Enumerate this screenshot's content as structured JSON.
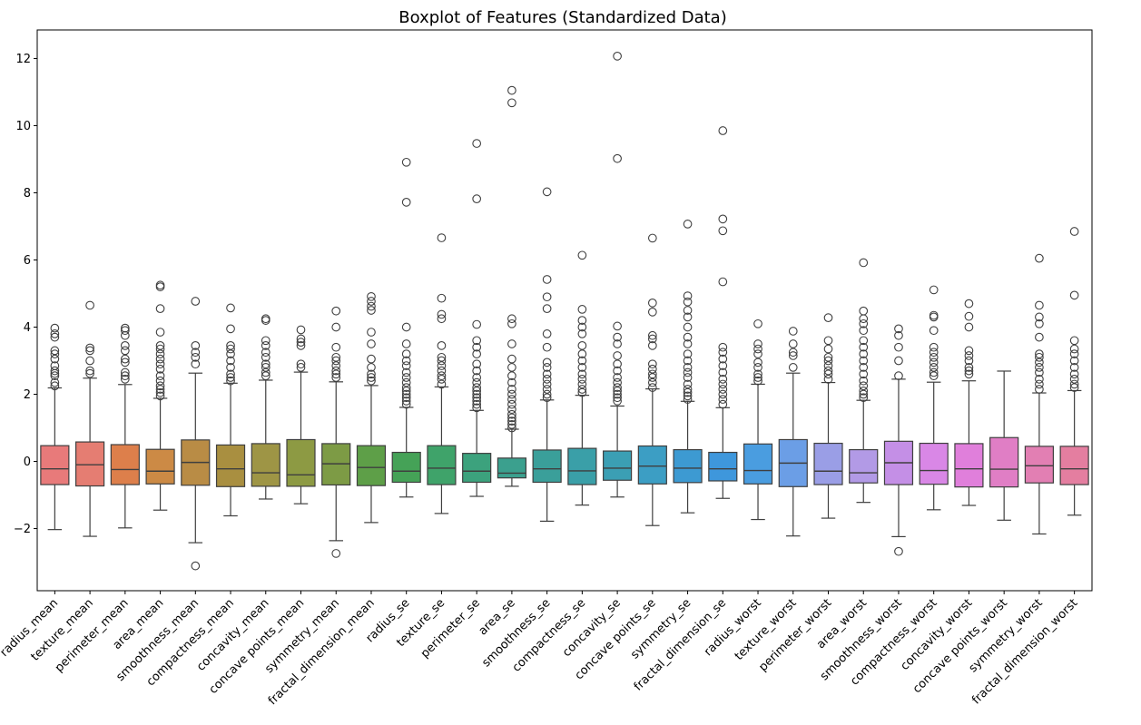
{
  "chart_data": {
    "type": "boxplot",
    "title": "Boxplot of Features (Standardized Data)",
    "xlabel": "",
    "ylabel": "",
    "ylim": [
      -3.85,
      12.85
    ],
    "yticks": [
      -2,
      0,
      2,
      4,
      6,
      8,
      10,
      12
    ],
    "grid": false,
    "legend": "none",
    "categories": [
      "radius_mean",
      "texture_mean",
      "perimeter_mean",
      "area_mean",
      "smoothness_mean",
      "compactness_mean",
      "concavity_mean",
      "concave points_mean",
      "symmetry_mean",
      "fractal_dimension_mean",
      "radius_se",
      "texture_se",
      "perimeter_se",
      "area_se",
      "smoothness_se",
      "compactness_se",
      "concavity_se",
      "concave points_se",
      "symmetry_se",
      "fractal_dimension_se",
      "radius_worst",
      "texture_worst",
      "perimeter_worst",
      "area_worst",
      "smoothness_worst",
      "compactness_worst",
      "concavity_worst",
      "concave points_worst",
      "symmetry_worst",
      "fractal_dimension_worst"
    ],
    "boxes": [
      {
        "q1": -0.69,
        "median": -0.22,
        "q3": 0.47,
        "whisker_low": -2.03,
        "whisker_high": 2.19,
        "color": "#e87a7a",
        "outliers": [
          2.25,
          2.35,
          2.55,
          2.62,
          2.7,
          2.85,
          3.05,
          3.2,
          3.3,
          3.7,
          3.8,
          3.97
        ]
      },
      {
        "q1": -0.73,
        "median": -0.1,
        "q3": 0.58,
        "whisker_low": -2.23,
        "whisker_high": 2.48,
        "color": "#e57d72",
        "outliers": [
          2.62,
          2.7,
          3.0,
          3.3,
          3.38,
          4.65
        ]
      },
      {
        "q1": -0.69,
        "median": -0.24,
        "q3": 0.5,
        "whisker_low": -1.98,
        "whisker_high": 2.29,
        "color": "#dd7f4b",
        "outliers": [
          2.45,
          2.55,
          2.65,
          2.95,
          3.05,
          3.3,
          3.45,
          3.75,
          3.9,
          3.97
        ]
      },
      {
        "q1": -0.67,
        "median": -0.29,
        "q3": 0.36,
        "whisker_low": -1.45,
        "whisker_high": 1.88,
        "color": "#cc8a45",
        "outliers": [
          1.95,
          2.05,
          2.15,
          2.25,
          2.4,
          2.55,
          2.75,
          2.9,
          3.05,
          3.2,
          3.35,
          3.45,
          3.85,
          4.55,
          5.2,
          5.25
        ]
      },
      {
        "q1": -0.71,
        "median": -0.03,
        "q3": 0.64,
        "whisker_low": -2.42,
        "whisker_high": 2.63,
        "color": "#b98c45",
        "outliers": [
          -3.11,
          2.9,
          3.1,
          3.25,
          3.45,
          4.77
        ]
      },
      {
        "q1": -0.75,
        "median": -0.22,
        "q3": 0.49,
        "whisker_low": -1.62,
        "whisker_high": 2.33,
        "color": "#a98f40",
        "outliers": [
          2.4,
          2.5,
          2.6,
          2.8,
          3.0,
          3.2,
          3.35,
          3.45,
          3.95,
          4.57
        ]
      },
      {
        "q1": -0.74,
        "median": -0.34,
        "q3": 0.53,
        "whisker_low": -1.12,
        "whisker_high": 2.42,
        "color": "#9e9545",
        "outliers": [
          2.55,
          2.65,
          2.8,
          2.9,
          3.1,
          3.25,
          3.45,
          3.6,
          4.2,
          4.25
        ]
      },
      {
        "q1": -0.74,
        "median": -0.4,
        "q3": 0.65,
        "whisker_low": -1.26,
        "whisker_high": 2.66,
        "color": "#8d9a43",
        "outliers": [
          2.8,
          2.9,
          3.45,
          3.55,
          3.65,
          3.92
        ]
      },
      {
        "q1": -0.7,
        "median": -0.07,
        "q3": 0.53,
        "whisker_low": -2.36,
        "whisker_high": 2.37,
        "color": "#7d9b45",
        "outliers": [
          -2.74,
          2.5,
          2.6,
          2.7,
          2.85,
          3.0,
          3.1,
          3.4,
          4.0,
          4.48
        ]
      },
      {
        "q1": -0.72,
        "median": -0.18,
        "q3": 0.47,
        "whisker_low": -1.82,
        "whisker_high": 2.26,
        "color": "#5e9f48",
        "outliers": [
          2.4,
          2.5,
          2.6,
          2.8,
          3.05,
          3.5,
          3.85,
          4.5,
          4.62,
          4.77,
          4.91
        ]
      },
      {
        "q1": -0.62,
        "median": -0.29,
        "q3": 0.27,
        "whisker_low": -1.06,
        "whisker_high": 1.61,
        "color": "#45a257",
        "outliers": [
          1.7,
          1.8,
          1.9,
          2.0,
          2.1,
          2.2,
          2.35,
          2.5,
          2.65,
          2.85,
          3.0,
          3.2,
          3.5,
          4.0,
          7.72,
          8.91
        ]
      },
      {
        "q1": -0.69,
        "median": -0.2,
        "q3": 0.47,
        "whisker_low": -1.55,
        "whisker_high": 2.22,
        "color": "#3fa36a",
        "outliers": [
          2.3,
          2.45,
          2.55,
          2.7,
          2.85,
          3.0,
          3.1,
          3.45,
          4.25,
          4.38,
          4.86,
          6.66
        ]
      },
      {
        "q1": -0.62,
        "median": -0.29,
        "q3": 0.24,
        "whisker_low": -1.04,
        "whisker_high": 1.52,
        "color": "#3ca27d",
        "outliers": [
          1.6,
          1.7,
          1.8,
          1.9,
          2.0,
          2.1,
          2.2,
          2.35,
          2.5,
          2.7,
          2.9,
          3.2,
          3.4,
          3.6,
          4.08,
          7.82,
          9.47
        ]
      },
      {
        "q1": -0.49,
        "median": -0.35,
        "q3": 0.1,
        "whisker_low": -0.74,
        "whisker_high": 0.96,
        "color": "#3ba08e",
        "outliers": [
          1.0,
          1.1,
          1.2,
          1.3,
          1.4,
          1.55,
          1.7,
          1.85,
          2.0,
          2.15,
          2.35,
          2.55,
          2.8,
          3.05,
          3.5,
          4.1,
          4.25,
          10.68,
          11.05
        ]
      },
      {
        "q1": -0.62,
        "median": -0.22,
        "q3": 0.34,
        "whisker_low": -1.78,
        "whisker_high": 1.83,
        "color": "#3a9f9a",
        "outliers": [
          1.9,
          2.0,
          2.15,
          2.3,
          2.45,
          2.6,
          2.8,
          2.95,
          3.4,
          3.8,
          4.55,
          4.9,
          5.42,
          8.03
        ]
      },
      {
        "q1": -0.69,
        "median": -0.28,
        "q3": 0.39,
        "whisker_low": -1.3,
        "whisker_high": 1.97,
        "color": "#3a9fa8",
        "outliers": [
          2.05,
          2.15,
          2.3,
          2.45,
          2.6,
          2.8,
          3.0,
          3.2,
          3.45,
          3.8,
          4.0,
          4.2,
          4.53,
          6.14
        ]
      },
      {
        "q1": -0.56,
        "median": -0.2,
        "q3": 0.31,
        "whisker_low": -1.06,
        "whisker_high": 1.65,
        "color": "#3b9fb4",
        "outliers": [
          1.8,
          1.9,
          2.0,
          2.1,
          2.2,
          2.35,
          2.5,
          2.7,
          2.9,
          3.15,
          3.5,
          3.7,
          4.03,
          9.02,
          12.07
        ]
      },
      {
        "q1": -0.67,
        "median": -0.14,
        "q3": 0.46,
        "whisker_low": -1.91,
        "whisker_high": 2.16,
        "color": "#3c9ec4",
        "outliers": [
          2.2,
          2.35,
          2.5,
          2.6,
          2.75,
          2.9,
          3.45,
          3.65,
          3.75,
          4.45,
          4.72,
          6.65
        ]
      },
      {
        "q1": -0.63,
        "median": -0.2,
        "q3": 0.35,
        "whisker_low": -1.53,
        "whisker_high": 1.79,
        "color": "#3d9ad2",
        "outliers": [
          1.85,
          1.95,
          2.05,
          2.15,
          2.3,
          2.5,
          2.65,
          2.8,
          3.0,
          3.2,
          3.5,
          3.7,
          4.0,
          4.3,
          4.5,
          4.75,
          4.93,
          7.07
        ]
      },
      {
        "q1": -0.58,
        "median": -0.22,
        "q3": 0.27,
        "whisker_low": -1.1,
        "whisker_high": 1.6,
        "color": "#3e97dc",
        "outliers": [
          1.7,
          1.85,
          2.0,
          2.15,
          2.3,
          2.45,
          2.65,
          2.85,
          3.05,
          3.25,
          3.4,
          5.35,
          6.87,
          7.22,
          9.85
        ]
      },
      {
        "q1": -0.67,
        "median": -0.27,
        "q3": 0.52,
        "whisker_low": -1.73,
        "whisker_high": 2.3,
        "color": "#4a9de0",
        "outliers": [
          2.4,
          2.5,
          2.6,
          2.8,
          2.95,
          3.2,
          3.35,
          3.5,
          4.1
        ]
      },
      {
        "q1": -0.75,
        "median": -0.05,
        "q3": 0.65,
        "whisker_low": -2.22,
        "whisker_high": 2.63,
        "color": "#6b9ee6",
        "outliers": [
          2.8,
          3.15,
          3.25,
          3.5,
          3.88
        ]
      },
      {
        "q1": -0.69,
        "median": -0.29,
        "q3": 0.54,
        "whisker_low": -1.69,
        "whisker_high": 2.35,
        "color": "#9a9ee6",
        "outliers": [
          2.45,
          2.6,
          2.7,
          2.85,
          3.0,
          3.1,
          3.35,
          3.6,
          4.28
        ]
      },
      {
        "q1": -0.64,
        "median": -0.34,
        "q3": 0.35,
        "whisker_low": -1.22,
        "whisker_high": 1.82,
        "color": "#b29ae6",
        "outliers": [
          1.9,
          2.0,
          2.1,
          2.25,
          2.4,
          2.6,
          2.8,
          3.0,
          3.2,
          3.4,
          3.6,
          3.9,
          4.1,
          4.25,
          4.48,
          5.92
        ]
      },
      {
        "q1": -0.69,
        "median": -0.04,
        "q3": 0.6,
        "whisker_low": -2.24,
        "whisker_high": 2.45,
        "color": "#c48fe6",
        "outliers": [
          -2.68,
          2.55,
          3.0,
          3.4,
          3.75,
          3.95
        ]
      },
      {
        "q1": -0.68,
        "median": -0.27,
        "q3": 0.54,
        "whisker_low": -1.44,
        "whisker_high": 2.36,
        "color": "#d987e6",
        "outliers": [
          2.55,
          2.65,
          2.8,
          2.95,
          3.1,
          3.25,
          3.4,
          3.9,
          4.3,
          4.35,
          5.11
        ]
      },
      {
        "q1": -0.76,
        "median": -0.22,
        "q3": 0.53,
        "whisker_low": -1.31,
        "whisker_high": 2.4,
        "color": "#e07fdb",
        "outliers": [
          2.6,
          2.7,
          2.8,
          3.0,
          3.15,
          3.3,
          4.0,
          4.32,
          4.7
        ]
      },
      {
        "q1": -0.76,
        "median": -0.23,
        "q3": 0.71,
        "whisker_low": -1.75,
        "whisker_high": 2.69,
        "color": "#e07ec5",
        "outliers": []
      },
      {
        "q1": -0.64,
        "median": -0.13,
        "q3": 0.45,
        "whisker_low": -2.16,
        "whisker_high": 2.04,
        "color": "#e27fb3",
        "outliers": [
          2.15,
          2.3,
          2.45,
          2.65,
          2.8,
          2.95,
          3.1,
          3.2,
          3.7,
          4.1,
          4.3,
          4.65,
          6.05
        ]
      },
      {
        "q1": -0.69,
        "median": -0.22,
        "q3": 0.45,
        "whisker_low": -1.6,
        "whisker_high": 2.11,
        "color": "#e47ea0",
        "outliers": [
          2.2,
          2.3,
          2.45,
          2.6,
          2.8,
          3.0,
          3.2,
          3.35,
          3.6,
          4.95,
          6.85
        ]
      }
    ]
  }
}
